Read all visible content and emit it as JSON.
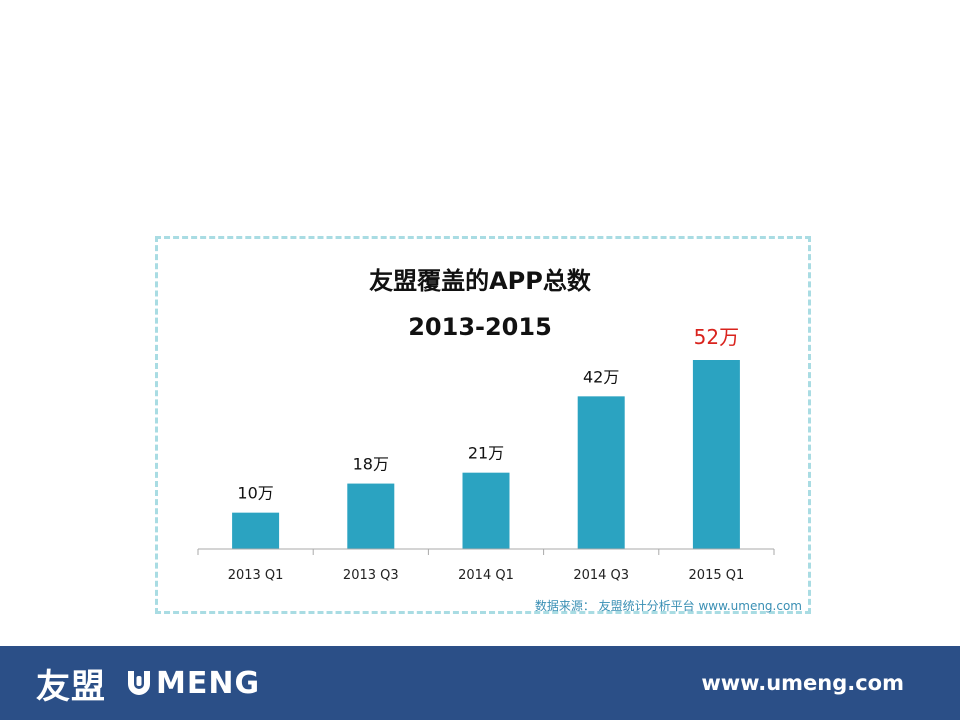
{
  "chart_data": {
    "type": "bar",
    "title": "友盟覆盖的APP总数",
    "subtitle": "2013-2015",
    "categories": [
      "2013 Q1",
      "2013 Q3",
      "2014 Q1",
      "2014 Q3",
      "2015 Q1"
    ],
    "values": [
      10,
      18,
      21,
      42,
      52
    ],
    "value_labels": [
      "10万",
      "18万",
      "21万",
      "42万",
      "52万"
    ],
    "ylim": [
      0,
      52
    ],
    "grid": false,
    "legend": "none",
    "bar_color": "#2ba3c1",
    "highlight_index": 4,
    "highlight_label_color": "#d9231d",
    "label_color": "#111111"
  },
  "source_note": "数据来源： 友盟统计分析平台 www.umeng.com",
  "footer": {
    "logo_cn": "友盟",
    "logo_en": "MENG",
    "logo_mark_icon": "umeng-u-logo-icon",
    "url": "www.umeng.com"
  }
}
